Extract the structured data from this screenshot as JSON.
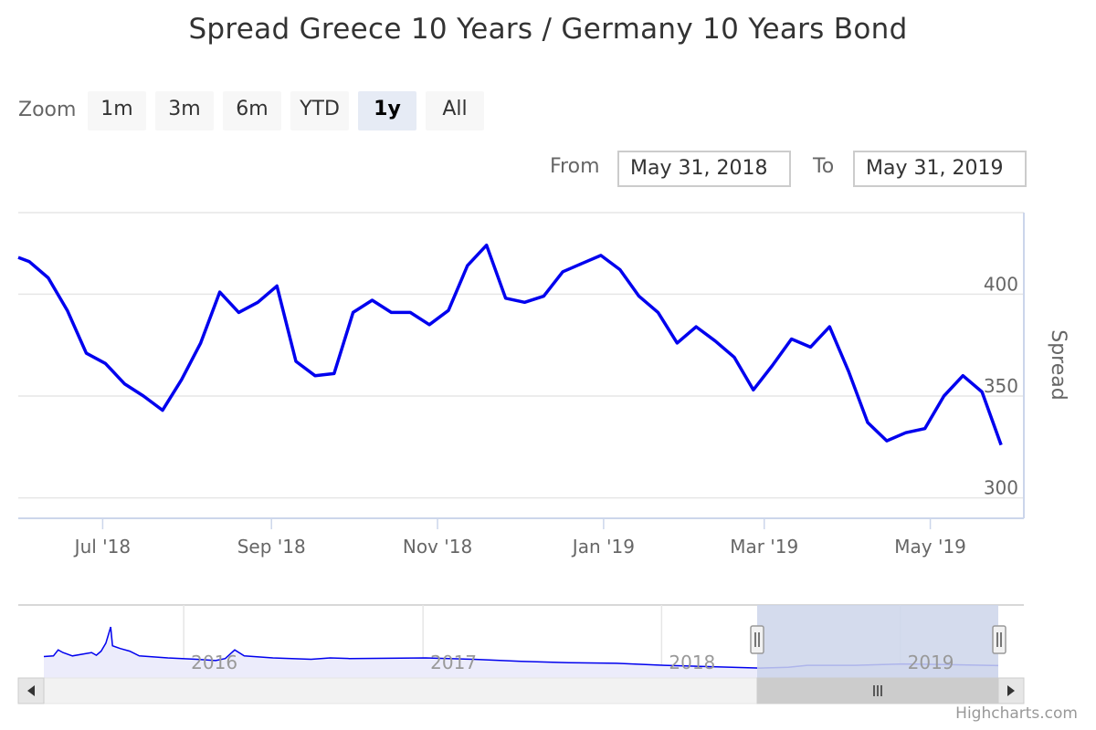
{
  "title": "Spread Greece 10 Years / Germany 10 Years Bond",
  "zoom": {
    "label": "Zoom",
    "buttons": [
      "1m",
      "3m",
      "6m",
      "YTD",
      "1y",
      "All"
    ],
    "active": "1y"
  },
  "range": {
    "from_label": "From",
    "from_value": "May 31, 2018",
    "to_label": "To",
    "to_value": "May 31, 2019"
  },
  "credits": "Highcharts.com",
  "colors": {
    "series": "#0000ee",
    "grid": "#e6e6e6",
    "navigator_mask": "#cdd5ea",
    "axis_label": "#666666"
  },
  "chart_data": {
    "type": "line",
    "title": "Spread Greece 10 Years / Germany 10 Years Bond",
    "ylabel": "Spread",
    "ylim": [
      290,
      440
    ],
    "yticks": [
      300,
      350,
      400
    ],
    "xlim": [
      "2018-05-31",
      "2019-05-31"
    ],
    "xticks": [
      {
        "date": "2018-07-01",
        "label": "Jul '18"
      },
      {
        "date": "2018-09-01",
        "label": "Sep '18"
      },
      {
        "date": "2018-11-01",
        "label": "Nov '18"
      },
      {
        "date": "2019-01-01",
        "label": "Jan '19"
      },
      {
        "date": "2019-03-01",
        "label": "Mar '19"
      },
      {
        "date": "2019-05-01",
        "label": "May '19"
      }
    ],
    "grid": true,
    "legend": "none",
    "series": [
      {
        "x": [
          "2018-05-31",
          "2018-06-04",
          "2018-06-11",
          "2018-06-18",
          "2018-06-25",
          "2018-07-02",
          "2018-07-09",
          "2018-07-16",
          "2018-07-23",
          "2018-07-30",
          "2018-08-06",
          "2018-08-13",
          "2018-08-20",
          "2018-08-27",
          "2018-09-03",
          "2018-09-10",
          "2018-09-17",
          "2018-09-24",
          "2018-10-01",
          "2018-10-08",
          "2018-10-15",
          "2018-10-22",
          "2018-10-29",
          "2018-11-05",
          "2018-11-12",
          "2018-11-19",
          "2018-11-26",
          "2018-12-03",
          "2018-12-10",
          "2018-12-17",
          "2018-12-24",
          "2018-12-31",
          "2019-01-07",
          "2019-01-14",
          "2019-01-21",
          "2019-01-28",
          "2019-02-04",
          "2019-02-11",
          "2019-02-18",
          "2019-02-25",
          "2019-03-04",
          "2019-03-11",
          "2019-03-18",
          "2019-03-25",
          "2019-04-01",
          "2019-04-08",
          "2019-04-15",
          "2019-04-22",
          "2019-04-29",
          "2019-05-06",
          "2019-05-13",
          "2019-05-20",
          "2019-05-27"
        ],
        "values": [
          418,
          416,
          408,
          392,
          371,
          366,
          356,
          350,
          343,
          358,
          376,
          401,
          391,
          396,
          404,
          367,
          360,
          361,
          391,
          397,
          391,
          391,
          385,
          392,
          414,
          424,
          398,
          396,
          399,
          411,
          415,
          419,
          412,
          399,
          391,
          376,
          384,
          377,
          369,
          353,
          365,
          378,
          374,
          384,
          362,
          337,
          328,
          332,
          334,
          350,
          360,
          352,
          326
        ]
      }
    ],
    "navigator": {
      "xticks": [
        {
          "date": "2016-01-01",
          "label": "2016"
        },
        {
          "date": "2017-01-01",
          "label": "2017"
        },
        {
          "date": "2018-01-01",
          "label": "2018"
        },
        {
          "date": "2019-01-01",
          "label": "2019"
        }
      ]
    }
  }
}
